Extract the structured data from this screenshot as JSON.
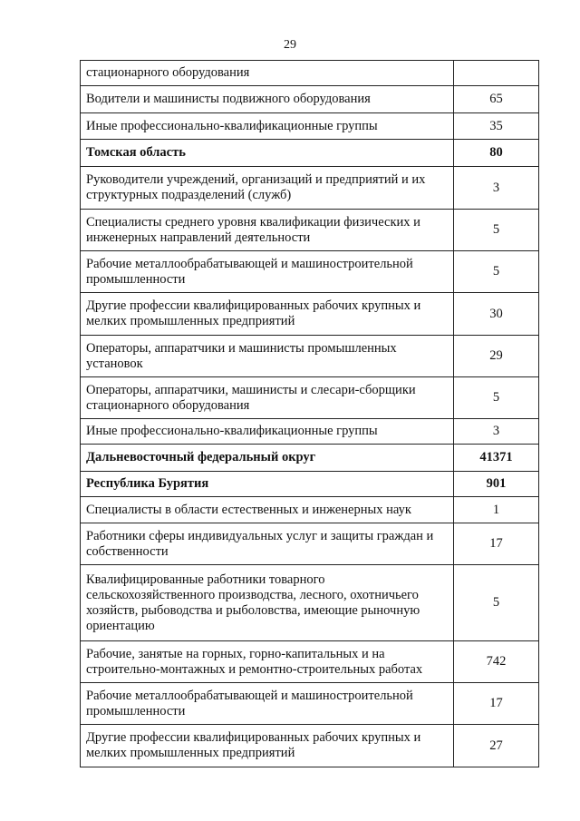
{
  "page_number": "29",
  "table": {
    "rows": [
      {
        "label": "стационарного оборудования",
        "value": null
      },
      {
        "label": "Водители и машинисты подвижного оборудования",
        "value": 65
      },
      {
        "label": "Иные профессионально-квалификационные группы",
        "value": 35
      },
      {
        "label": "Томская область",
        "value": 80,
        "bold": true
      },
      {
        "label": "Руководители учреждений, организаций и предприятий и их структурных подразделений (служб)",
        "value": 3
      },
      {
        "label": "Специалисты среднего уровня квалификации физических и инженерных направлений деятельности",
        "value": 5
      },
      {
        "label": "Рабочие металлообрабатывающей и машиностроительной промышленности",
        "value": 5
      },
      {
        "label": "Другие профессии квалифицированных рабочих крупных и мелких промышленных предприятий",
        "value": 30
      },
      {
        "label": "Операторы, аппаратчики и машинисты промышленных установок",
        "value": 29
      },
      {
        "label": "Операторы, аппаратчики, машинисты и слесари-сборщики стационарного оборудования",
        "value": 5
      },
      {
        "label": "Иные профессионально-квалификационные группы",
        "value": 3
      },
      {
        "label": "Дальневосточный федеральный округ",
        "value": 41371,
        "bold": true
      },
      {
        "label": "Республика Бурятия",
        "value": 901,
        "bold": true
      },
      {
        "label": "Специалисты в области естественных и инженерных наук",
        "value": 1
      },
      {
        "label": "Работники сферы индивидуальных услуг и защиты граждан и собственности",
        "value": 17
      },
      {
        "label": "Квалифицированные работники товарного сельскохозяйственного производства, лесного, охотничьего хозяйств, рыбоводства и рыболовства, имеющие рыночную ориентацию",
        "value": 5
      },
      {
        "label": "Рабочие, занятые на горных, горно-капитальных и на строительно-монтажных и ремонтно-строительных работах",
        "value": 742
      },
      {
        "label": "Рабочие металлообрабатывающей и машиностроительной промышленности",
        "value": 17
      },
      {
        "label": "Другие профессии квалифицированных рабочих крупных и мелких промышленных предприятий",
        "value": 27
      }
    ]
  }
}
